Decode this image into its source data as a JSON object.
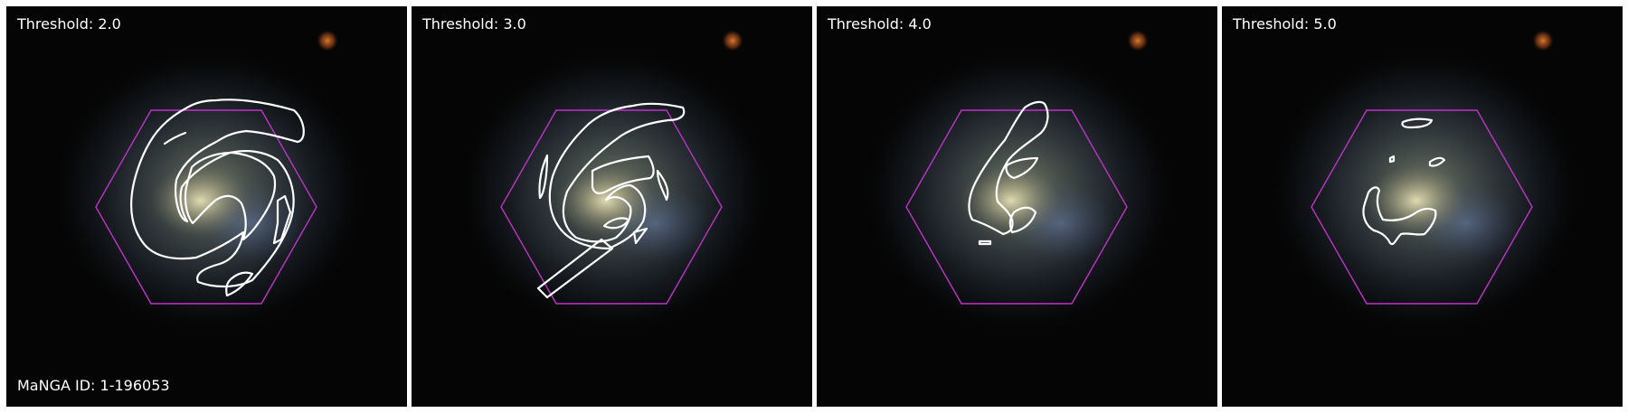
{
  "panels": [
    {
      "threshold_label": "Threshold: 2.0"
    },
    {
      "threshold_label": "Threshold: 3.0"
    },
    {
      "threshold_label": "Threshold: 4.0"
    },
    {
      "threshold_label": "Threshold: 5.0"
    }
  ],
  "galaxy_id_label": "MaNGA ID: 1-196053",
  "colors": {
    "hexagon": "#c032c8",
    "contour": "#ffffff",
    "background": "#050505"
  }
}
